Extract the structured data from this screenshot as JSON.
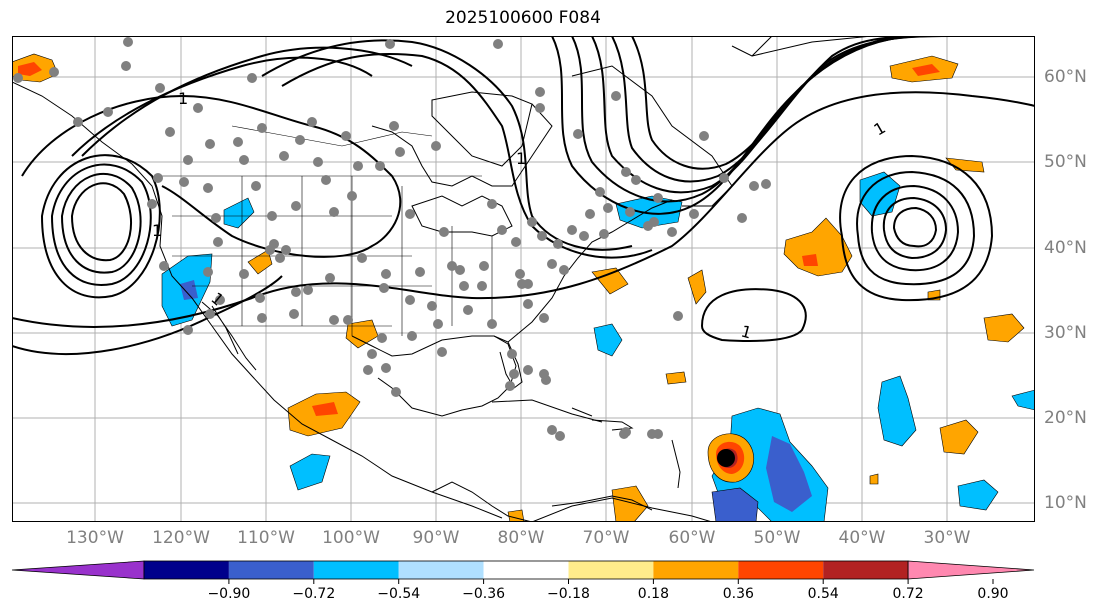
{
  "title": "2025100600 F084",
  "longitude_labels": [
    "130°W",
    "120°W",
    "110°W",
    "100°W",
    "90°W",
    "80°W",
    "70°W",
    "60°W",
    "50°W",
    "40°W",
    "30°W"
  ],
  "latitude_labels": [
    "60°N",
    "50°N",
    "40°N",
    "30°N",
    "20°N",
    "10°N"
  ],
  "contour_labels": [
    "1",
    "1",
    "1",
    "1",
    "1",
    "1"
  ],
  "colorbar": {
    "tick_labels": [
      "−0.90",
      "−0.72",
      "−0.54",
      "−0.36",
      "−0.18",
      "0.18",
      "0.36",
      "0.54",
      "0.72",
      "0.90"
    ],
    "colors": [
      "#9932cc",
      "#00008b",
      "#3a5fcd",
      "#00bfff",
      "#b0e0ff",
      "#ffffff",
      "#ffec8b",
      "#ffa500",
      "#ff4500",
      "#b22222",
      "#ff88b0"
    ]
  },
  "colors": {
    "grid": "#b0b0b0",
    "coast": "#000000",
    "station": "#808080",
    "storm_center": "#000000"
  }
}
